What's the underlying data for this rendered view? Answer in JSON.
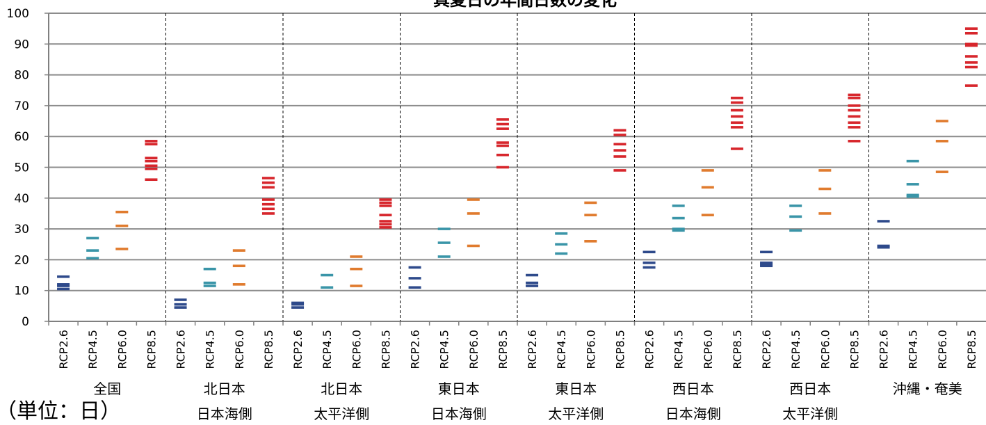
{
  "chart_data": {
    "type": "scatter",
    "title": "真夏日の年間日数の変化",
    "unit_label": "（単位：日）",
    "ylim": [
      0,
      100
    ],
    "yticks": [
      0,
      10,
      20,
      30,
      40,
      50,
      60,
      70,
      80,
      90,
      100
    ],
    "grid": true,
    "scenarios": [
      "RCP2.6",
      "RCP4.5",
      "RCP6.0",
      "RCP8.5"
    ],
    "colors": {
      "RCP2.6": "#2e4a8b",
      "RCP4.5": "#3a95a8",
      "RCP6.0": "#e07b2e",
      "RCP8.5": "#d7262c"
    },
    "regions": [
      {
        "name": [
          "全国"
        ],
        "values": {
          "RCP2.6": [
            10.5,
            11.5,
            12,
            14.5
          ],
          "RCP4.5": [
            20.5,
            23,
            27
          ],
          "RCP6.0": [
            23.5,
            31,
            35.5
          ],
          "RCP8.5": [
            46,
            49.5,
            50.5,
            52,
            53,
            57.5,
            58.5
          ]
        }
      },
      {
        "name": [
          "北日本",
          "日本海側"
        ],
        "values": {
          "RCP2.6": [
            4.5,
            5.5,
            7
          ],
          "RCP4.5": [
            11.5,
            12.5,
            17
          ],
          "RCP6.0": [
            12,
            18,
            23
          ],
          "RCP8.5": [
            35,
            36.5,
            38,
            39.5,
            43.5,
            45,
            46.5
          ]
        }
      },
      {
        "name": [
          "北日本",
          "太平洋側"
        ],
        "values": {
          "RCP2.6": [
            4.5,
            5.5,
            6
          ],
          "RCP4.5": [
            11,
            15
          ],
          "RCP6.0": [
            11.5,
            17,
            21
          ],
          "RCP8.5": [
            30.5,
            31.5,
            32.5,
            34.5,
            37.5,
            38.5,
            39.5
          ]
        }
      },
      {
        "name": [
          "東日本",
          "日本海側"
        ],
        "values": {
          "RCP2.6": [
            11,
            14,
            17.5
          ],
          "RCP4.5": [
            21,
            25.5,
            30
          ],
          "RCP6.0": [
            24.5,
            35,
            39.5
          ],
          "RCP8.5": [
            50,
            54,
            57,
            58,
            62.5,
            64,
            65.5
          ]
        }
      },
      {
        "name": [
          "東日本",
          "太平洋側"
        ],
        "values": {
          "RCP2.6": [
            11.5,
            12.5,
            15
          ],
          "RCP4.5": [
            22,
            25,
            28.5
          ],
          "RCP6.0": [
            26,
            34.5,
            38.5
          ],
          "RCP8.5": [
            49,
            53.5,
            55.5,
            57.5,
            60.5,
            62
          ]
        }
      },
      {
        "name": [
          "西日本",
          "日本海側"
        ],
        "values": {
          "RCP2.6": [
            17.5,
            19,
            22.5
          ],
          "RCP4.5": [
            29.5,
            30,
            33.5,
            37.5
          ],
          "RCP6.0": [
            34.5,
            43.5,
            49
          ],
          "RCP8.5": [
            56,
            63,
            64.5,
            66.5,
            68.5,
            71,
            72.5
          ]
        }
      },
      {
        "name": [
          "西日本",
          "太平洋側"
        ],
        "values": {
          "RCP2.6": [
            18,
            18.5,
            19,
            22.5
          ],
          "RCP4.5": [
            29.5,
            34,
            37.5
          ],
          "RCP6.0": [
            35,
            43,
            49
          ],
          "RCP8.5": [
            58.5,
            63,
            64.5,
            66.5,
            68.5,
            70,
            72.5,
            73.5
          ]
        }
      },
      {
        "name": [
          "沖縄・奄美"
        ],
        "values": {
          "RCP2.6": [
            24,
            24.5,
            32.5
          ],
          "RCP4.5": [
            40.5,
            41,
            44.5,
            52
          ],
          "RCP6.0": [
            48.5,
            58.5,
            65
          ],
          "RCP8.5": [
            76.5,
            82.5,
            84,
            86,
            89.5,
            90,
            93.5,
            95
          ]
        }
      }
    ]
  }
}
